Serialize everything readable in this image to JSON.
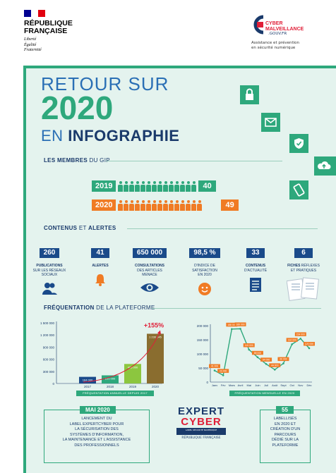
{
  "header": {
    "republique": "RÉPUBLIQUE\nFRANÇAISE",
    "motto": "Liberté\nÉgalité\nFraternité",
    "brand": "CYBER\nMALVEILLANCE",
    "brand_domain": ".GOUV.FR",
    "brand_tagline": "Assistance et prévention\nen sécurité numérique"
  },
  "hero": {
    "line1": "RETOUR SUR",
    "year": "2020",
    "line3_prefix": "EN ",
    "line3_bold": "INFOGRAPHIE"
  },
  "side_icons": [
    "lock-icon",
    "mail-icon",
    "shield-check-icon",
    "cloud-upload-icon",
    "phone-icon"
  ],
  "members": {
    "heading_bold": "LES MEMBRES",
    "heading_rest": " DU GIP",
    "rows": [
      {
        "year": "2019",
        "count": "40",
        "color": "#2ea87c"
      },
      {
        "year": "2020",
        "count": "49",
        "color": "#f07b24"
      }
    ]
  },
  "content": {
    "heading_bold": "CONTENUS",
    "heading_mid": " ET ",
    "heading_bold2": "ALERTES",
    "stats": [
      {
        "num": "260",
        "label_bold": "PUBLICATIONS",
        "label": "\nSUR LES RÉSEAUX\nSOCIAUX",
        "icon": "users-icon"
      },
      {
        "num": "41",
        "label_bold": "ALERTES",
        "label": "",
        "icon": "bell-icon"
      },
      {
        "num": "650 000",
        "label_bold": "CONSULTATIONS",
        "label": "\nDES ARTICLES\nMENACE",
        "icon": "eye-icon"
      },
      {
        "num": "98,5 %",
        "label_bold": "",
        "label": "D'INDICE DE\nSATISFACTION\nEN 2020",
        "icon": "smiley-icon"
      },
      {
        "num": "33",
        "label_bold": "CONTENUS",
        "label": "\nD'ACTUALITÉ",
        "icon": "document-icon"
      },
      {
        "num": "6",
        "label_bold": "FICHES",
        "label": " RÉFLEXES\nET PRATIQUES",
        "icon": "leaflet-icon"
      }
    ]
  },
  "traffic": {
    "heading_bold": "FRÉQUENTATION",
    "heading_rest": " DE LA PLATEFORME"
  },
  "chart_data": [
    {
      "type": "bar",
      "title": "FRÉQUENTATION ANNUELLE DEPUIS 2017",
      "categories": [
        "2017",
        "2018",
        "2019",
        "2020"
      ],
      "values": [
        164000,
        201000,
        483000,
        1230045
      ],
      "data_labels": [
        "164 000",
        "201 000",
        "483 000",
        "1 230 045"
      ],
      "yticks": [
        "0",
        "300 000",
        "600 000",
        "900 000",
        "1 200 000",
        "1 500 000"
      ],
      "ylim": [
        0,
        1500000
      ],
      "annotation": "+155%",
      "colors": [
        "#1a4a8a",
        "#2ea87c",
        "#8cc63f",
        "#8a6d2f"
      ],
      "trend_color": "#e01e37"
    },
    {
      "type": "line",
      "title": "FRÉQUENTATION MENSUELLE EN 2020",
      "categories": [
        "Janv",
        "Fév",
        "Mars",
        "Avril",
        "Mai",
        "Juin",
        "Juil",
        "Août",
        "Sept",
        "Oct",
        "Nov",
        "Déc"
      ],
      "values": [
        41000,
        24000,
        188000,
        189000,
        115000,
        88000,
        64000,
        44000,
        66000,
        134000,
        154000,
        120000
      ],
      "data_labels": [
        "41 000",
        "24 000",
        "188 000",
        "189 000",
        "115 000",
        "88 000",
        "64 000",
        "44 000",
        "66 000",
        "134 000",
        "154 000",
        "120 000"
      ],
      "yticks": [
        "0",
        "50 000",
        "100 000",
        "150 000",
        "200 000"
      ],
      "ylim": [
        0,
        200000
      ],
      "line_color": "#2ea87c",
      "label_color": "#f07b24"
    }
  ],
  "footer": {
    "left_head": "MAI 2020",
    "left_text": "LANCEMENT DU\nLABEL EXPERTCYBER POUR\nLA SÉCURISATION DES\nSYSTÈMES D'INFORMATION,\nLA MAINTENANCE ET L'ASSISTANCE\nDES PROFESSIONNELS",
    "expert_line1": "EXPERT",
    "expert_line2": "CYBER",
    "expert_badge": "LABEL SÉCURITÉ NUMÉRIQUE",
    "expert_rf": "RÉPUBLIQUE FRANÇAISE",
    "right_head": "55",
    "right_text": "LABELLISÉS\nEN 2020 ET\nCRÉATION D'UN\nPARCOURS\nDÉDIÉ SUR LA\nPLATEFORME"
  }
}
